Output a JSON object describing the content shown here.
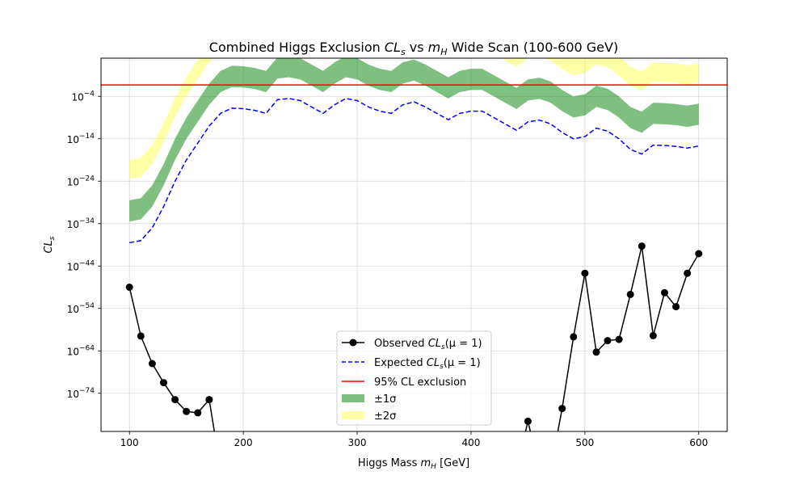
{
  "chart_data": {
    "type": "line",
    "title": "Combined Higgs Exclusion CLs vs mH Wide Scan (100-600 GeV)",
    "title_parts": {
      "pre": "Combined Higgs Exclusion ",
      "var1": "CL",
      "var1_sub": "s",
      "mid": " vs ",
      "var2": "m",
      "var2_sub": "H",
      "post": " Wide Scan (100-600 GeV)"
    },
    "xlabel": "Higgs Mass mH [GeV]",
    "xlabel_parts": {
      "pre": "Higgs Mass ",
      "var": "m",
      "sub": "H",
      "post": " [GeV]"
    },
    "ylabel": "CLs",
    "ylabel_parts": {
      "var": "CL",
      "sub": "s"
    },
    "xlim": [
      75,
      625
    ],
    "ylim_log10": [
      -83,
      5
    ],
    "y_scale": "log",
    "grid": true,
    "x_ticks": [
      100,
      200,
      300,
      400,
      500,
      600
    ],
    "y_tick_exponents": [
      -74,
      -64,
      -54,
      -44,
      -34,
      -24,
      -14,
      -4
    ],
    "exclusion_line": {
      "value": 0.05,
      "color": "#ff0000",
      "label": "95% CL exclusion"
    },
    "x": [
      100,
      110,
      120,
      130,
      140,
      150,
      160,
      170,
      180,
      190,
      200,
      210,
      220,
      230,
      240,
      250,
      260,
      270,
      280,
      290,
      300,
      310,
      320,
      330,
      340,
      350,
      360,
      370,
      380,
      390,
      400,
      410,
      420,
      430,
      440,
      450,
      460,
      470,
      480,
      490,
      500,
      510,
      520,
      530,
      540,
      550,
      560,
      570,
      580,
      590,
      600
    ],
    "series": [
      {
        "name": "Observed CLs(μ = 1)",
        "color": "#000000",
        "style": "solid-marker",
        "log10_values": [
          -49,
          -60.5,
          -67,
          -71.5,
          -75.5,
          -78.3,
          -78.6,
          -75.5,
          -92,
          -92,
          -92,
          -92,
          -92,
          -92,
          -92,
          -92,
          -92,
          -92,
          -92,
          -92,
          -92,
          -92,
          -92,
          -92,
          -92,
          -92,
          -92,
          -92,
          -92,
          -92,
          -92,
          -92,
          -92,
          -92,
          -92,
          -80.6,
          -92,
          -92,
          -77.6,
          -60.7,
          -45.7,
          -64.3,
          -61.6,
          -61.3,
          -50.7,
          -39.3,
          -60.4,
          -50.3,
          -53.6,
          -45.7,
          -41.1
        ]
      },
      {
        "name": "Expected CLs(μ = 1)",
        "color": "#0000ff",
        "style": "dashed",
        "log10_values": [
          -38.5,
          -38,
          -35,
          -30,
          -24,
          -19,
          -15,
          -11,
          -8,
          -6.8,
          -6.9,
          -7.3,
          -8,
          -4.8,
          -4.5,
          -5,
          -6.5,
          -8,
          -6,
          -4.5,
          -5,
          -6.5,
          -7.5,
          -8,
          -6,
          -5.3,
          -6.5,
          -8,
          -9.5,
          -8,
          -7.5,
          -7.5,
          -9,
          -10.5,
          -12,
          -10,
          -9.6,
          -10.5,
          -12.5,
          -14,
          -13.5,
          -11.5,
          -12.2,
          -14,
          -16.5,
          -17.6,
          -15.5,
          -15.6,
          -15.8,
          -16.2,
          -15.7
        ]
      }
    ],
    "bands": [
      {
        "name": "±1σ",
        "color": "#008000",
        "opacity": 0.5,
        "lower_log10": [
          -33.5,
          -33,
          -30,
          -25,
          -19,
          -14,
          -10,
          -6,
          -3,
          -1.8,
          -1.9,
          -2.3,
          -3,
          0.2,
          0.5,
          0,
          -1.5,
          -3,
          -1,
          0.5,
          0,
          -1.5,
          -2.5,
          -3,
          -1,
          -0.3,
          -1.5,
          -3,
          -4.5,
          -3,
          -2.5,
          -2.5,
          -4,
          -5.5,
          -7,
          -5,
          -4.6,
          -5.5,
          -7.5,
          -9,
          -8.5,
          -6.5,
          -7.2,
          -9,
          -11.5,
          -12.6,
          -10.5,
          -10.6,
          -10.8,
          -11.2,
          -10.7
        ],
        "upper_log10": [
          -28.5,
          -28,
          -25,
          -20,
          -14,
          -9,
          -5,
          -1,
          2,
          3.2,
          3.1,
          2.7,
          2,
          5.2,
          5.5,
          5,
          3.5,
          2,
          4,
          5.5,
          5,
          3.5,
          2.5,
          2,
          4,
          4.7,
          3.5,
          2,
          0.5,
          2,
          2.5,
          2.5,
          1,
          -0.5,
          -2,
          0,
          0.4,
          -0.5,
          -2.5,
          -4,
          -3.5,
          -1.5,
          -2.2,
          -4,
          -6.5,
          -7.6,
          -5.5,
          -5.6,
          -5.8,
          -6.2,
          -5.7
        ]
      },
      {
        "name": "±2σ",
        "color": "#ffff00",
        "opacity": 0.35,
        "lower_log10": [
          -23.5,
          -23,
          -20,
          -15,
          -9,
          -4,
          0,
          4,
          7,
          8.2,
          8.1,
          7.7,
          7,
          10.2,
          10.5,
          10,
          8.5,
          7,
          9,
          10.5,
          10,
          8.5,
          7.5,
          7,
          9,
          9.7,
          8.5,
          7,
          5.5,
          7,
          7.5,
          7.5,
          6,
          4.5,
          3,
          5,
          5.4,
          4.5,
          2.5,
          1,
          1.5,
          3.5,
          2.8,
          1,
          -1.5,
          -2.6,
          -0.5,
          -0.6,
          -0.8,
          -1.2,
          -0.7
        ],
        "upper_log10": [
          -19,
          -18.5,
          -15.5,
          -10.5,
          -4.5,
          0.5,
          4.5,
          8.5,
          11.5,
          12.7,
          12.6,
          12.2,
          11.5,
          14.7,
          15,
          14.5,
          13,
          11.5,
          13.5,
          15,
          14.5,
          13,
          12,
          11.5,
          13.5,
          14.2,
          13,
          11.5,
          10,
          11.5,
          12,
          12,
          10.5,
          9,
          7.5,
          9.5,
          9.9,
          9,
          7,
          5.5,
          6,
          8,
          7.3,
          5.5,
          3,
          1.9,
          4,
          3.9,
          3.7,
          3.3,
          3.8
        ]
      }
    ],
    "legend": {
      "position": "bottom-center",
      "entries": [
        {
          "label": "Observed CLs(μ = 1)",
          "pre": "Observed ",
          "var": "CL",
          "sub": "s",
          "post": "(μ = 1)"
        },
        {
          "label": "Expected CLs(μ = 1)",
          "pre": "Expected ",
          "var": "CL",
          "sub": "s",
          "post": "(μ = 1)"
        },
        {
          "label": "95% CL exclusion"
        },
        {
          "label": "±1σ"
        },
        {
          "label": "±2σ"
        }
      ]
    }
  }
}
